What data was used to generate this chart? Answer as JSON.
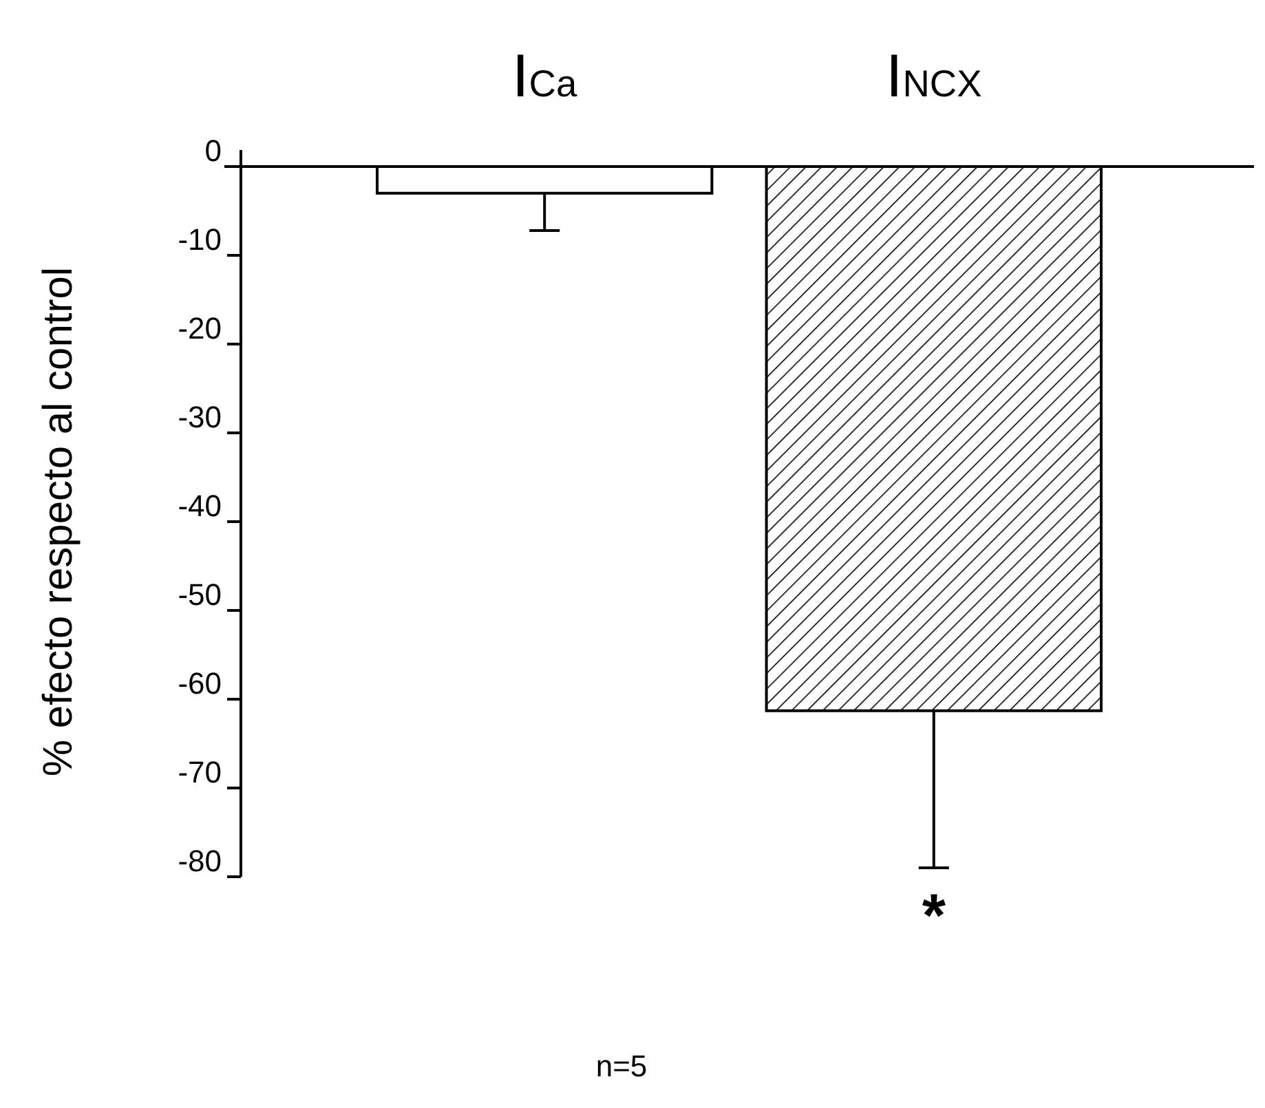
{
  "chart_data": {
    "type": "bar",
    "categories": [
      "I$_{Ca}$",
      "I$_{NCX}$"
    ],
    "values": [
      -3,
      -61.3
    ],
    "errors": [
      [
        -7.2,
        -3
      ],
      [
        -79,
        -61.3
      ]
    ],
    "colors": [
      "#ffffff",
      "#000000"
    ],
    "ylabel": "% efecto respecto al control",
    "ylim": [
      -80,
      0
    ],
    "yticks": [
      0,
      -10,
      -20,
      -30,
      -40,
      -50,
      -60,
      -70,
      -80
    ],
    "annotations": [
      "*",
      "n=5"
    ]
  }
}
